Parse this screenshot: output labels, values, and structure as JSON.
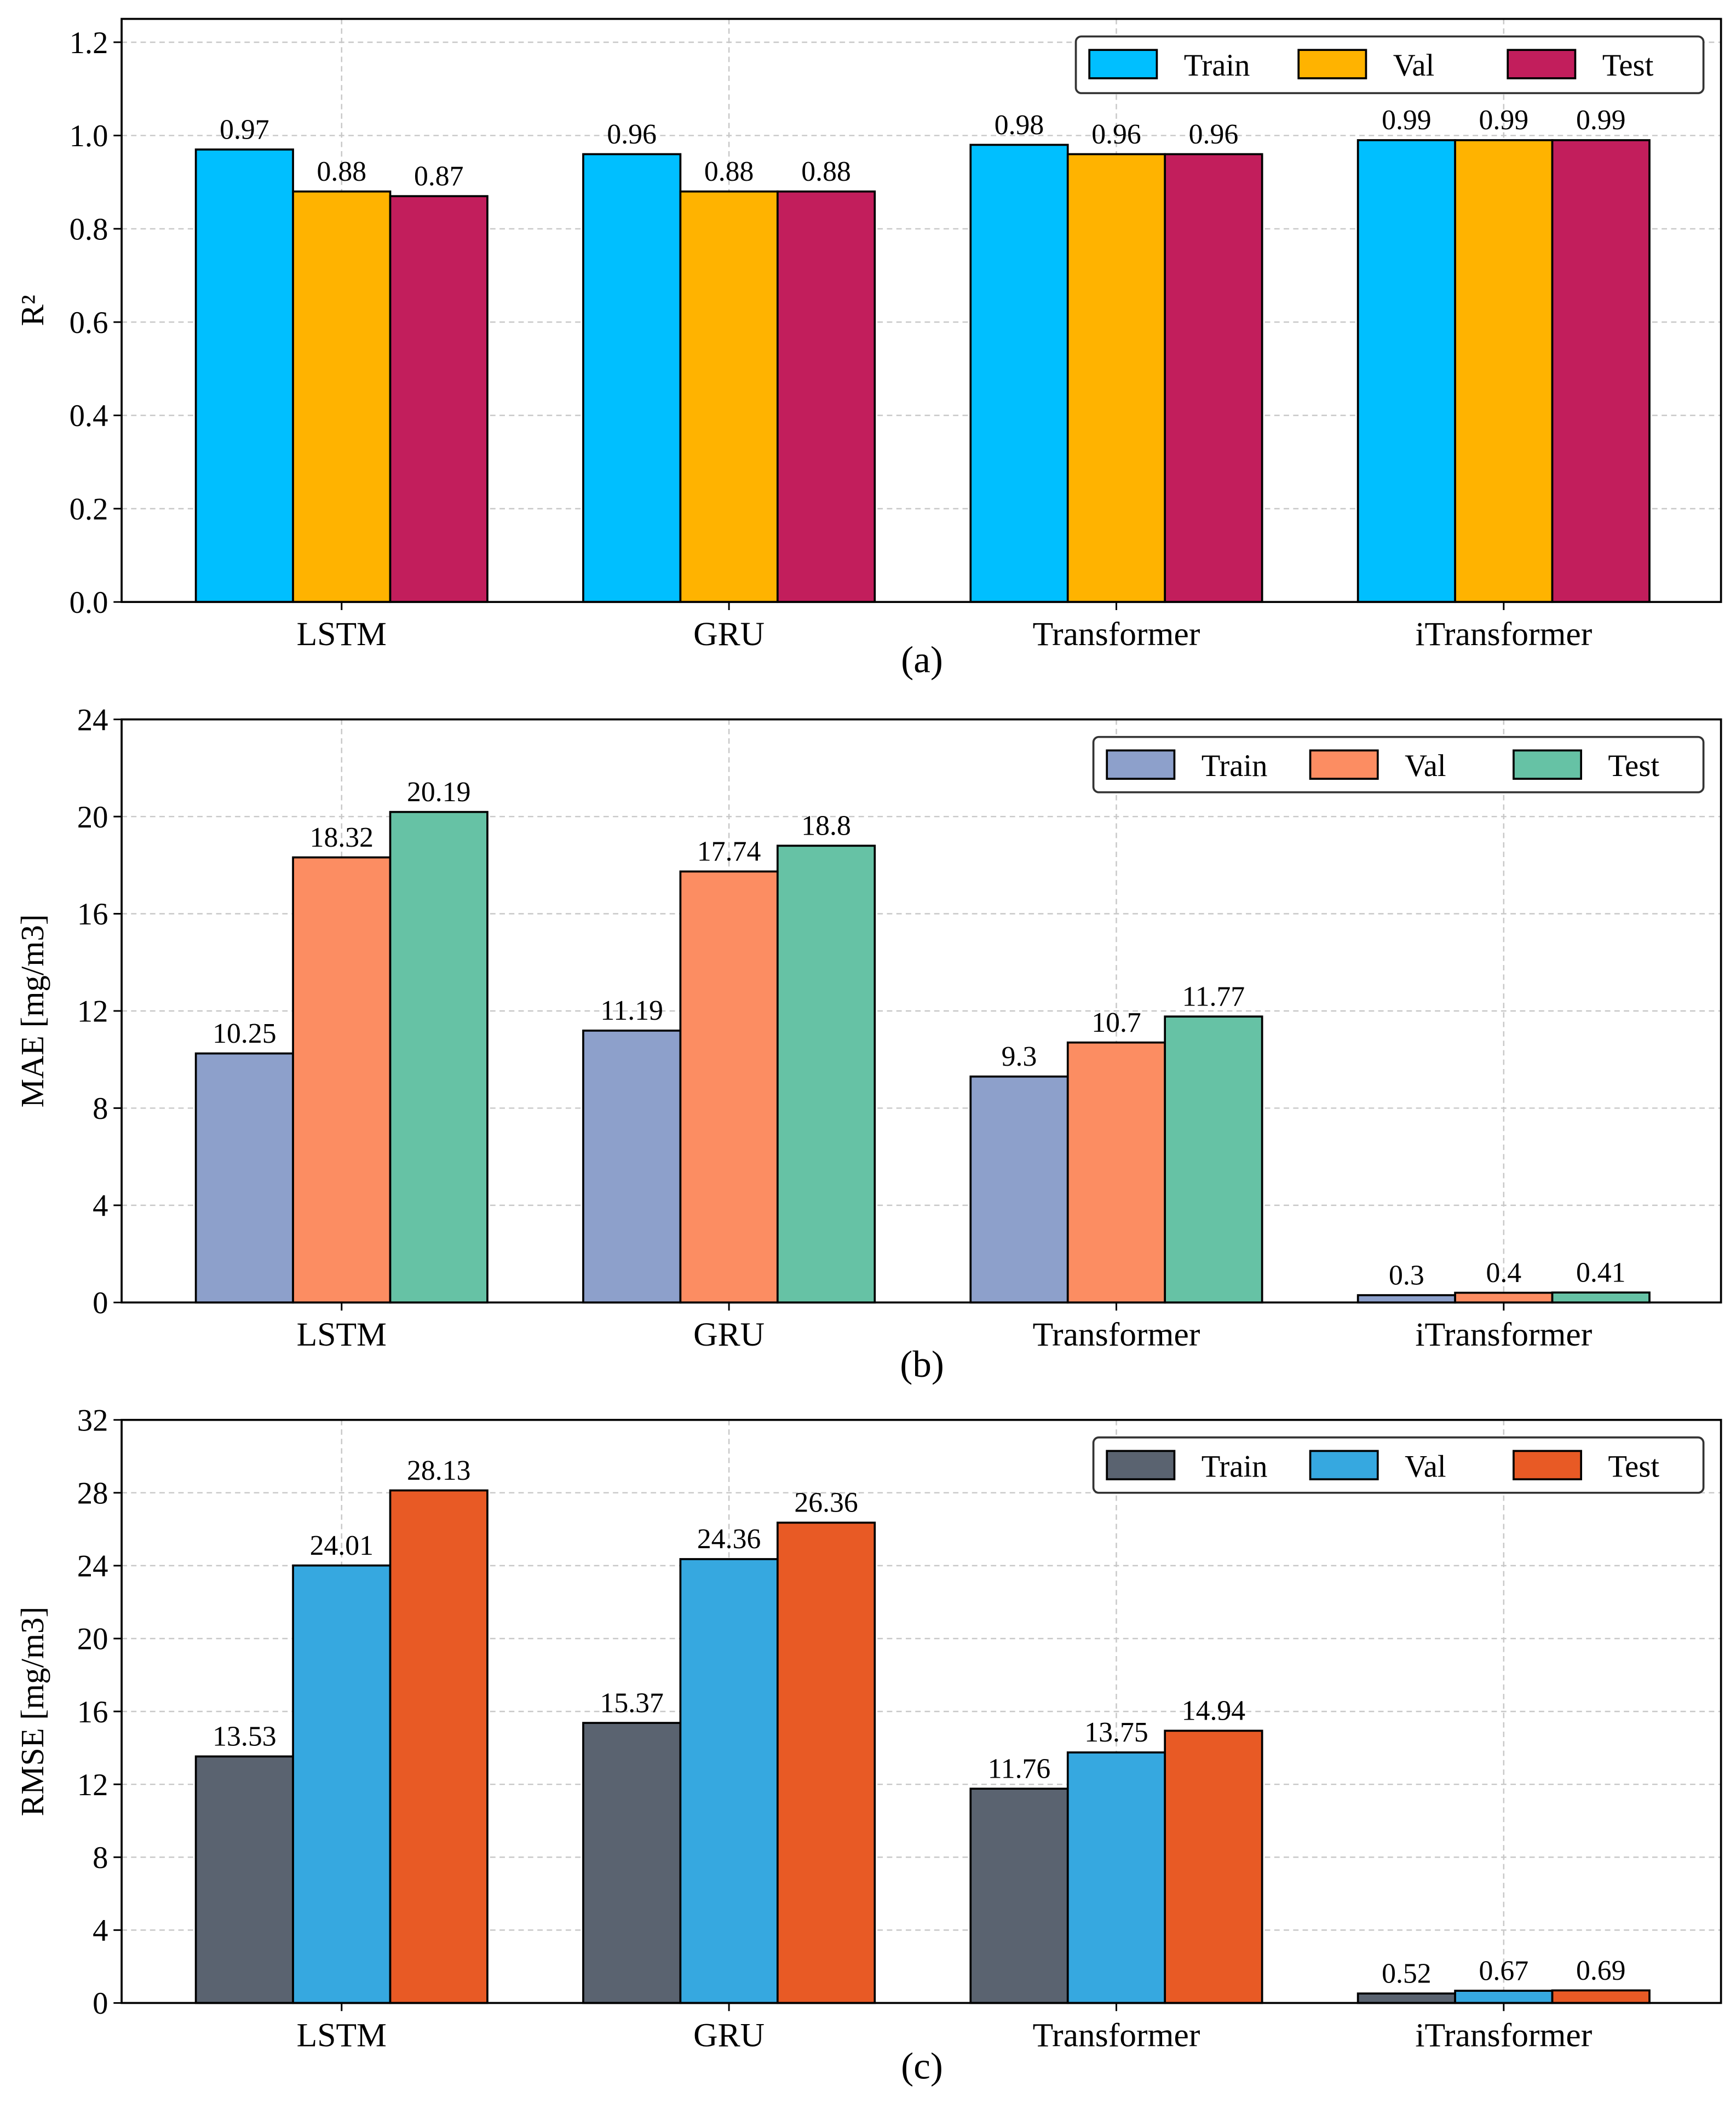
{
  "chart_data": [
    {
      "type": "bar",
      "panel_label": "(a)",
      "ylabel": "R²",
      "ylim": [
        0,
        1.25
      ],
      "yticks": [
        "0.0",
        "0.2",
        "0.4",
        "0.6",
        "0.8",
        "1.0",
        "1.2"
      ],
      "ytick_values": [
        0,
        0.2,
        0.4,
        0.6,
        0.8,
        1.0,
        1.2
      ],
      "grid": true,
      "legend_position": "top-right",
      "categories": [
        "LSTM",
        "GRU",
        "Transformer",
        "iTransformer"
      ],
      "series": [
        {
          "name": "Train",
          "color": "#00BFFF",
          "values": [
            0.97,
            0.96,
            0.98,
            0.99
          ],
          "labels": [
            "0.97",
            "0.96",
            "0.98",
            "0.99"
          ]
        },
        {
          "name": "Val",
          "color": "#FFB300",
          "values": [
            0.88,
            0.88,
            0.96,
            0.99
          ],
          "labels": [
            "0.88",
            "0.88",
            "0.96",
            "0.99"
          ]
        },
        {
          "name": "Test",
          "color": "#C21E5C",
          "values": [
            0.87,
            0.88,
            0.96,
            0.99
          ],
          "labels": [
            "0.87",
            "0.88",
            "0.96",
            "0.99"
          ]
        }
      ]
    },
    {
      "type": "bar",
      "panel_label": "(b)",
      "ylabel": "MAE [mg/m3]",
      "ylim": [
        0,
        24
      ],
      "yticks": [
        "0",
        "4",
        "8",
        "12",
        "16",
        "20",
        "24"
      ],
      "ytick_values": [
        0,
        4,
        8,
        12,
        16,
        20,
        24
      ],
      "grid": true,
      "legend_position": "top-right",
      "categories": [
        "LSTM",
        "GRU",
        "Transformer",
        "iTransformer"
      ],
      "series": [
        {
          "name": "Train",
          "color": "#8DA0CB",
          "values": [
            10.25,
            11.19,
            9.3,
            0.3
          ],
          "labels": [
            "10.25",
            "11.19",
            "9.3",
            "0.3"
          ]
        },
        {
          "name": "Val",
          "color": "#FC8D62",
          "values": [
            18.32,
            17.74,
            10.7,
            0.4
          ],
          "labels": [
            "18.32",
            "17.74",
            "10.7",
            "0.4"
          ]
        },
        {
          "name": "Test",
          "color": "#66C2A5",
          "values": [
            20.19,
            18.8,
            11.77,
            0.41
          ],
          "labels": [
            "20.19",
            "18.8",
            "11.77",
            "0.41"
          ]
        }
      ]
    },
    {
      "type": "bar",
      "panel_label": "(c)",
      "ylabel": "RMSE [mg/m3]",
      "ylim": [
        0,
        32
      ],
      "yticks": [
        "0",
        "4",
        "8",
        "12",
        "16",
        "20",
        "24",
        "28",
        "32"
      ],
      "ytick_values": [
        0,
        4,
        8,
        12,
        16,
        20,
        24,
        28,
        32
      ],
      "grid": true,
      "legend_position": "top-right",
      "categories": [
        "LSTM",
        "GRU",
        "Transformer",
        "iTransformer"
      ],
      "series": [
        {
          "name": "Train",
          "color": "#5A6370",
          "values": [
            13.53,
            15.37,
            11.76,
            0.52
          ],
          "labels": [
            "13.53",
            "15.37",
            "11.76",
            "0.52"
          ]
        },
        {
          "name": "Val",
          "color": "#36A8E0",
          "values": [
            24.01,
            24.36,
            13.75,
            0.67
          ],
          "labels": [
            "24.01",
            "24.36",
            "13.75",
            "0.67"
          ]
        },
        {
          "name": "Test",
          "color": "#E85A25",
          "values": [
            28.13,
            26.36,
            14.94,
            0.69
          ],
          "labels": [
            "28.13",
            "26.36",
            "14.94",
            "0.69"
          ]
        }
      ]
    }
  ]
}
